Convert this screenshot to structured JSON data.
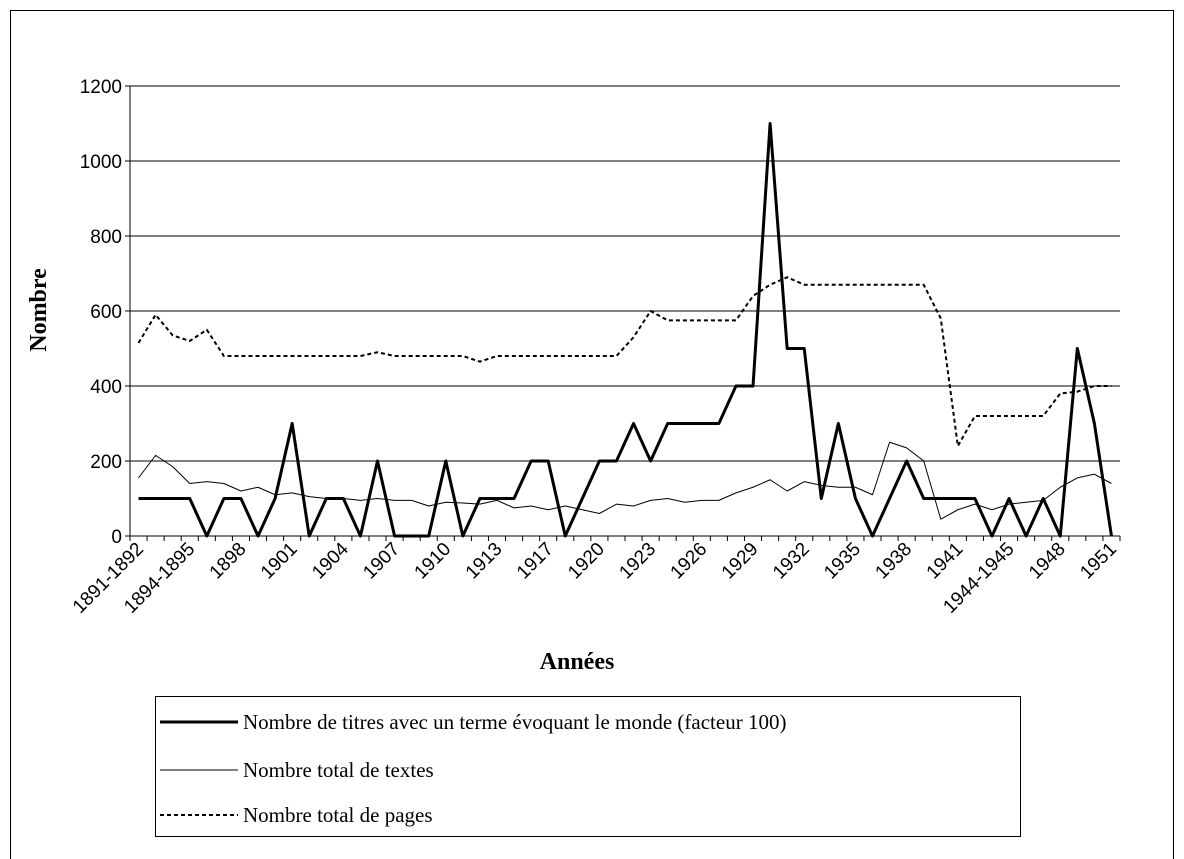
{
  "chart_data": {
    "type": "line",
    "xlabel": "Années",
    "ylabel": "Nombre",
    "categories": [
      "1891-1892",
      null,
      null,
      "1894-1895",
      null,
      null,
      "1898",
      null,
      null,
      "1901",
      null,
      null,
      "1904",
      null,
      null,
      "1907",
      null,
      null,
      "1910",
      null,
      null,
      "1913",
      null,
      null,
      "1917",
      null,
      null,
      "1920",
      null,
      null,
      "1923",
      null,
      null,
      "1926",
      null,
      null,
      "1929",
      null,
      null,
      "1932",
      null,
      null,
      "1935",
      null,
      null,
      "1938",
      null,
      null,
      "1941",
      null,
      null,
      "1944-1945",
      null,
      null,
      "1948",
      null,
      null,
      "1951"
    ],
    "series": [
      {
        "name": "Nombre de titres avec un terme évoquant le monde (facteur 100)",
        "color": "#000000",
        "width": 3,
        "dash": "solid",
        "values": [
          100,
          100,
          100,
          100,
          0,
          100,
          100,
          0,
          100,
          300,
          0,
          100,
          100,
          0,
          200,
          0,
          0,
          0,
          200,
          0,
          100,
          100,
          100,
          200,
          200,
          0,
          100,
          200,
          200,
          300,
          200,
          300,
          300,
          300,
          300,
          400,
          400,
          1100,
          500,
          500,
          100,
          300,
          100,
          0,
          100,
          200,
          100,
          100,
          100,
          100,
          0,
          100,
          0,
          100,
          0,
          500,
          300,
          0
        ]
      },
      {
        "name": "Nombre total de textes",
        "color": "#000000",
        "width": 1,
        "dash": "solid",
        "values": [
          155,
          215,
          185,
          140,
          145,
          140,
          120,
          130,
          110,
          115,
          105,
          100,
          100,
          95,
          100,
          95,
          95,
          80,
          90,
          88,
          85,
          95,
          75,
          80,
          70,
          80,
          70,
          60,
          85,
          80,
          95,
          100,
          90,
          95,
          95,
          115,
          130,
          150,
          120,
          145,
          135,
          130,
          130,
          110,
          250,
          235,
          200,
          45,
          70,
          85,
          70,
          85,
          90,
          95,
          130,
          155,
          165,
          140
        ]
      },
      {
        "name": "Nombre total de pages",
        "color": "#000000",
        "width": 2,
        "dash": "dotted",
        "values": [
          515,
          590,
          535,
          520,
          550,
          480,
          480,
          480,
          480,
          480,
          480,
          480,
          480,
          480,
          490,
          480,
          480,
          480,
          480,
          480,
          465,
          480,
          480,
          480,
          480,
          480,
          480,
          480,
          480,
          530,
          600,
          575,
          575,
          575,
          575,
          575,
          640,
          670,
          690,
          670,
          670,
          670,
          670,
          670,
          670,
          670,
          670,
          580,
          240,
          320,
          320,
          320,
          320,
          320,
          380,
          385,
          400,
          400
        ]
      }
    ],
    "ylim": [
      0,
      1200
    ],
    "yticks": [
      0,
      200,
      400,
      600,
      800,
      1000,
      1200
    ],
    "grid": true
  }
}
